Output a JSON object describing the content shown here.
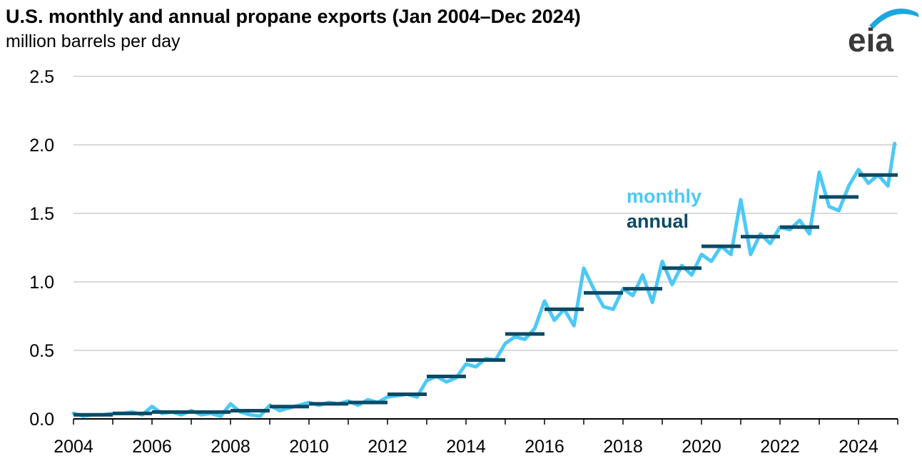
{
  "title": "U.S. monthly and annual propane exports (Jan 2004–Dec 2024)",
  "subtitle": "million barrels per day",
  "logo_text": "eia",
  "colors": {
    "monthly": "#4cc9f6",
    "annual": "#0d4a66",
    "grid": "#d9d9d9",
    "axis": "#000000",
    "logo_arc": "#1aa7e0",
    "logo_text": "#3a3a3a"
  },
  "chart_data": {
    "type": "line",
    "title": "U.S. monthly and annual propane exports (Jan 2004–Dec 2024)",
    "ylabel": "million barrels per day",
    "xlabel": "",
    "ylim": [
      0,
      2.5
    ],
    "xlim": [
      2004,
      2025
    ],
    "yticks": [
      "0.0",
      "0.5",
      "1.0",
      "1.5",
      "2.0",
      "2.5"
    ],
    "xticks": [
      "2004",
      "2006",
      "2008",
      "2010",
      "2012",
      "2014",
      "2016",
      "2018",
      "2020",
      "2022",
      "2024"
    ],
    "grid": "horizontal",
    "legend": "inline labels near right (monthly above annual)",
    "series": [
      {
        "name": "monthly",
        "x": [
          2004.0,
          2004.25,
          2004.5,
          2004.75,
          2005.0,
          2005.25,
          2005.5,
          2005.75,
          2006.0,
          2006.25,
          2006.5,
          2006.75,
          2007.0,
          2007.25,
          2007.5,
          2007.75,
          2008.0,
          2008.25,
          2008.5,
          2008.75,
          2009.0,
          2009.25,
          2009.5,
          2009.75,
          2010.0,
          2010.25,
          2010.5,
          2010.75,
          2011.0,
          2011.25,
          2011.5,
          2011.75,
          2012.0,
          2012.25,
          2012.5,
          2012.75,
          2013.0,
          2013.25,
          2013.5,
          2013.75,
          2014.0,
          2014.25,
          2014.5,
          2014.75,
          2015.0,
          2015.25,
          2015.5,
          2015.75,
          2016.0,
          2016.25,
          2016.5,
          2016.75,
          2017.0,
          2017.25,
          2017.5,
          2017.75,
          2018.0,
          2018.25,
          2018.5,
          2018.75,
          2019.0,
          2019.25,
          2019.5,
          2019.75,
          2020.0,
          2020.25,
          2020.5,
          2020.75,
          2021.0,
          2021.25,
          2021.5,
          2021.75,
          2022.0,
          2022.25,
          2022.5,
          2022.75,
          2023.0,
          2023.25,
          2023.5,
          2023.75,
          2024.0,
          2024.25,
          2024.5,
          2024.75,
          2024.92
        ],
        "y": [
          0.04,
          0.02,
          0.03,
          0.03,
          0.04,
          0.04,
          0.05,
          0.03,
          0.09,
          0.04,
          0.05,
          0.03,
          0.06,
          0.03,
          0.04,
          0.02,
          0.11,
          0.05,
          0.03,
          0.02,
          0.1,
          0.06,
          0.08,
          0.1,
          0.12,
          0.1,
          0.12,
          0.11,
          0.13,
          0.1,
          0.14,
          0.12,
          0.16,
          0.17,
          0.18,
          0.16,
          0.28,
          0.31,
          0.27,
          0.3,
          0.4,
          0.38,
          0.44,
          0.43,
          0.55,
          0.6,
          0.58,
          0.66,
          0.86,
          0.72,
          0.8,
          0.68,
          1.1,
          0.95,
          0.82,
          0.8,
          0.95,
          0.9,
          1.05,
          0.85,
          1.15,
          0.98,
          1.12,
          1.05,
          1.2,
          1.15,
          1.26,
          1.2,
          1.6,
          1.2,
          1.35,
          1.28,
          1.4,
          1.38,
          1.45,
          1.35,
          1.8,
          1.55,
          1.52,
          1.7,
          1.82,
          1.72,
          1.78,
          1.7,
          2.01
        ]
      },
      {
        "name": "annual",
        "type": "step",
        "years": [
          2004,
          2005,
          2006,
          2007,
          2008,
          2009,
          2010,
          2011,
          2012,
          2013,
          2014,
          2015,
          2016,
          2017,
          2018,
          2019,
          2020,
          2021,
          2022,
          2023,
          2024
        ],
        "values": [
          0.03,
          0.04,
          0.05,
          0.05,
          0.06,
          0.09,
          0.11,
          0.12,
          0.18,
          0.31,
          0.43,
          0.62,
          0.8,
          0.92,
          0.95,
          1.1,
          1.26,
          1.33,
          1.4,
          1.62,
          1.78
        ]
      }
    ]
  }
}
